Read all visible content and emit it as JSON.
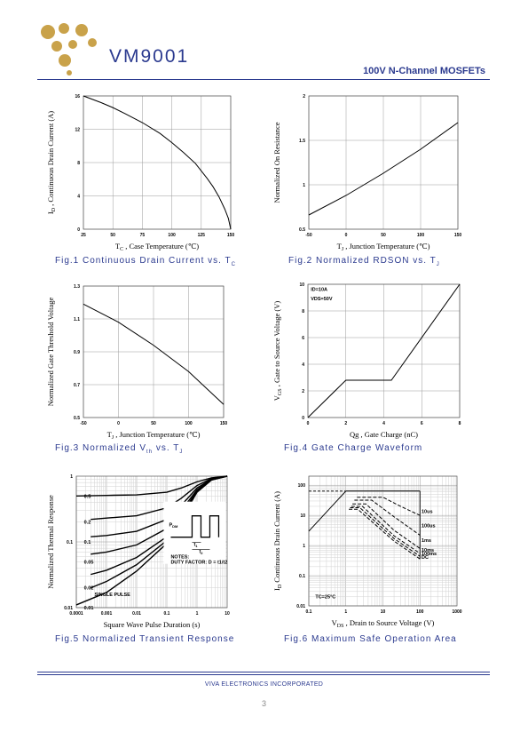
{
  "header": {
    "brand": "VM9001",
    "doc_title": "100V N-Channel MOSFETs"
  },
  "colors": {
    "brand": "#2b3a8f",
    "logo": "#c9a24a",
    "grid": "#c8c8c8"
  },
  "footer": {
    "company": "VIVA ELECTRONICS INCORPORATED",
    "page": "3"
  },
  "chart_data": [
    {
      "id": "fig1",
      "type": "line",
      "caption": "Fig.1   Continuous Drain Current vs. T",
      "caption_sub": "C",
      "xlabel_main": "T",
      "xlabel_sub": "C",
      "xlabel_rest": " , Case Temperature (℃)",
      "ylabel_main": "I",
      "ylabel_sub": "D",
      "ylabel_rest": " , Continuous Drain Current (A)",
      "xlim": [
        25,
        150
      ],
      "ylim": [
        0,
        16
      ],
      "xticks": [
        "25",
        "50",
        "75",
        "100",
        "125",
        "150"
      ],
      "yticks": [
        "0",
        "4",
        "8",
        "12",
        "16"
      ],
      "series": [
        {
          "x": [
            25,
            40,
            50,
            60,
            75,
            90,
            100,
            110,
            120,
            130,
            135,
            140,
            145,
            148,
            150
          ],
          "y": [
            16,
            15.2,
            14.6,
            13.9,
            12.8,
            11.5,
            10.4,
            9.2,
            7.9,
            6.1,
            5.1,
            3.9,
            2.4,
            1.3,
            0
          ]
        }
      ]
    },
    {
      "id": "fig2",
      "type": "line",
      "caption": "Fig.2   Normalized RDSON vs. T",
      "caption_sub": "J",
      "xlabel_main": "T",
      "xlabel_sub": "J",
      "xlabel_rest": " , Junction Temperature (℃)",
      "ylabel_main": "Normalized On Resistance",
      "ylabel_sub": "",
      "ylabel_rest": "",
      "xlim": [
        -50,
        150
      ],
      "ylim": [
        0.5,
        2
      ],
      "xticks": [
        "-50",
        "0",
        "50",
        "100",
        "150"
      ],
      "yticks": [
        "0.5",
        "1",
        "1.5",
        "2"
      ],
      "series": [
        {
          "x": [
            -50,
            0,
            50,
            100,
            150
          ],
          "y": [
            0.66,
            0.88,
            1.13,
            1.4,
            1.7
          ]
        }
      ]
    },
    {
      "id": "fig3",
      "type": "line",
      "caption": "Fig.3   Normalized V",
      "caption_sub": "th",
      "caption_tail": " vs. T",
      "caption_tail_sub": "J",
      "xlabel_main": "T",
      "xlabel_sub": "J",
      "xlabel_rest": " , Junction Temperature (℃)",
      "ylabel_main": "Normalized Gate Threshold Voltage",
      "ylabel_sub": "",
      "ylabel_rest": "",
      "xlim": [
        -50,
        150
      ],
      "ylim": [
        0.5,
        1.3
      ],
      "xticks": [
        "-50",
        "0",
        "50",
        "100",
        "150"
      ],
      "yticks": [
        "0.5",
        "0.7",
        "0.9",
        "1.1",
        "1.3"
      ],
      "series": [
        {
          "x": [
            -50,
            0,
            50,
            100,
            150
          ],
          "y": [
            1.19,
            1.08,
            0.94,
            0.78,
            0.58
          ]
        }
      ]
    },
    {
      "id": "fig4",
      "type": "line",
      "caption": "Fig.4   Gate Charge Waveform",
      "xlabel_main": "Qg , Gate Charge (nC)",
      "xlabel_sub": "",
      "xlabel_rest": "",
      "ylabel_main": "V",
      "ylabel_sub": "GS",
      "ylabel_rest": " , Gate to Source Voltage (V)",
      "xlim": [
        0,
        8
      ],
      "ylim": [
        0,
        10
      ],
      "xticks": [
        "0",
        "2",
        "4",
        "6",
        "8"
      ],
      "yticks": [
        "0",
        "2",
        "4",
        "6",
        "8",
        "10"
      ],
      "annotations": [
        "ID=10A",
        "VDS=50V"
      ],
      "series": [
        {
          "x": [
            0,
            2,
            4.4,
            8
          ],
          "y": [
            0,
            2.8,
            2.8,
            10
          ]
        }
      ]
    },
    {
      "id": "fig5",
      "type": "line",
      "caption": "Fig.5   Normalized Transient Response",
      "xlabel_main": "Square Wave Pulse Duration (s)",
      "xlabel_sub": "",
      "xlabel_rest": "",
      "ylabel_main": "Normalized Thermal Response",
      "ylabel_sub": "",
      "ylabel_rest": "",
      "xscale": "log",
      "yscale": "log",
      "xlim": [
        0.0001,
        10
      ],
      "ylim": [
        0.01,
        1
      ],
      "xticks": [
        "0.0001",
        "0.001",
        "0.01",
        "0.1",
        "1",
        "10"
      ],
      "yticks": [
        "0.01",
        "0.1",
        "1"
      ],
      "duty_labels": [
        "0.5",
        "0.2",
        "0.1",
        "0.05",
        "0.02",
        "0.01"
      ],
      "inset_notes": [
        "P",
        "DM",
        "t",
        "1",
        "t",
        "2",
        "NOTES:",
        "DUTY FACTOR: D = t1/t2"
      ],
      "single_pulse_label": "SINGLE PULSE",
      "series": [
        {
          "name": "0.5",
          "x": [
            0.0001,
            0.001,
            0.01,
            0.1,
            0.3,
            1,
            3,
            10
          ],
          "y": [
            0.5,
            0.51,
            0.52,
            0.57,
            0.66,
            0.82,
            0.94,
            1
          ]
        },
        {
          "name": "0.2",
          "x": [
            0.0003,
            0.001,
            0.01,
            0.1,
            0.3,
            1,
            3,
            10
          ],
          "y": [
            0.22,
            0.23,
            0.25,
            0.33,
            0.46,
            0.72,
            0.92,
            1
          ]
        },
        {
          "name": "0.1",
          "x": [
            0.0003,
            0.001,
            0.01,
            0.1,
            0.3,
            1,
            3,
            10
          ],
          "y": [
            0.12,
            0.125,
            0.145,
            0.22,
            0.36,
            0.66,
            0.9,
            1
          ]
        },
        {
          "name": "0.05",
          "x": [
            0.0003,
            0.001,
            0.01,
            0.1,
            0.3,
            1,
            3,
            10
          ],
          "y": [
            0.065,
            0.07,
            0.09,
            0.16,
            0.3,
            0.62,
            0.89,
            1
          ]
        },
        {
          "name": "0.02",
          "x": [
            0.0003,
            0.001,
            0.01,
            0.1,
            0.3,
            1,
            3,
            10
          ],
          "y": [
            0.032,
            0.037,
            0.058,
            0.12,
            0.26,
            0.6,
            0.88,
            1
          ]
        },
        {
          "name": "0.01",
          "x": [
            0.0003,
            0.001,
            0.01,
            0.1,
            0.3,
            1,
            3,
            10
          ],
          "y": [
            0.02,
            0.025,
            0.045,
            0.105,
            0.24,
            0.59,
            0.88,
            1
          ]
        },
        {
          "name": "SINGLE PULSE",
          "x": [
            0.0001,
            0.001,
            0.01,
            0.1,
            0.3,
            1,
            3,
            10
          ],
          "y": [
            0.011,
            0.017,
            0.036,
            0.095,
            0.22,
            0.57,
            0.87,
            1
          ]
        }
      ]
    },
    {
      "id": "fig6",
      "type": "line",
      "caption": "Fig.6   Maximum Safe Operation Area",
      "xlabel_main": "V",
      "xlabel_sub": "DS",
      "xlabel_rest": " , Drain to Source Voltage (V)",
      "ylabel_main": "I",
      "ylabel_sub": "D",
      "ylabel_rest": "  Continuous Drain Current (A)",
      "xscale": "log",
      "yscale": "log",
      "xlim": [
        0.1,
        1000
      ],
      "ylim": [
        0.01,
        200
      ],
      "xticks": [
        "0.1",
        "1",
        "10",
        "100",
        "1000"
      ],
      "yticks": [
        "0.01",
        "0.1",
        "1",
        "10",
        "100"
      ],
      "annotation": "TC=25°C",
      "limit_labels": [
        "10us",
        "100us",
        "1ms",
        "10ms",
        "100ms",
        "DC"
      ],
      "series": [
        {
          "name": "RDS(on) limit",
          "x": [
            0.1,
            1
          ],
          "y": [
            3,
            64
          ]
        },
        {
          "name": "current limit",
          "x": [
            1,
            100
          ],
          "y": [
            64,
            64
          ]
        },
        {
          "name": "10us",
          "x": [
            2,
            10,
            30,
            100
          ],
          "y": [
            40,
            40,
            20,
            10
          ]
        },
        {
          "name": "100us",
          "x": [
            1.7,
            5,
            20,
            100
          ],
          "y": [
            32,
            32,
            9,
            2.2
          ]
        },
        {
          "name": "1ms",
          "x": [
            1.5,
            3.5,
            20,
            100
          ],
          "y": [
            24,
            24,
            3.2,
            0.8
          ]
        },
        {
          "name": "10ms",
          "x": [
            1.4,
            2.8,
            20,
            100
          ],
          "y": [
            20,
            20,
            2.1,
            0.55
          ]
        },
        {
          "name": "100ms",
          "x": [
            1.3,
            2.4,
            20,
            100
          ],
          "y": [
            18,
            18,
            1.7,
            0.44
          ]
        },
        {
          "name": "DC",
          "x": [
            1.2,
            2.1,
            20,
            100
          ],
          "y": [
            16,
            16,
            1.4,
            0.36
          ]
        }
      ],
      "max_current_dashed_y": 64
    }
  ]
}
